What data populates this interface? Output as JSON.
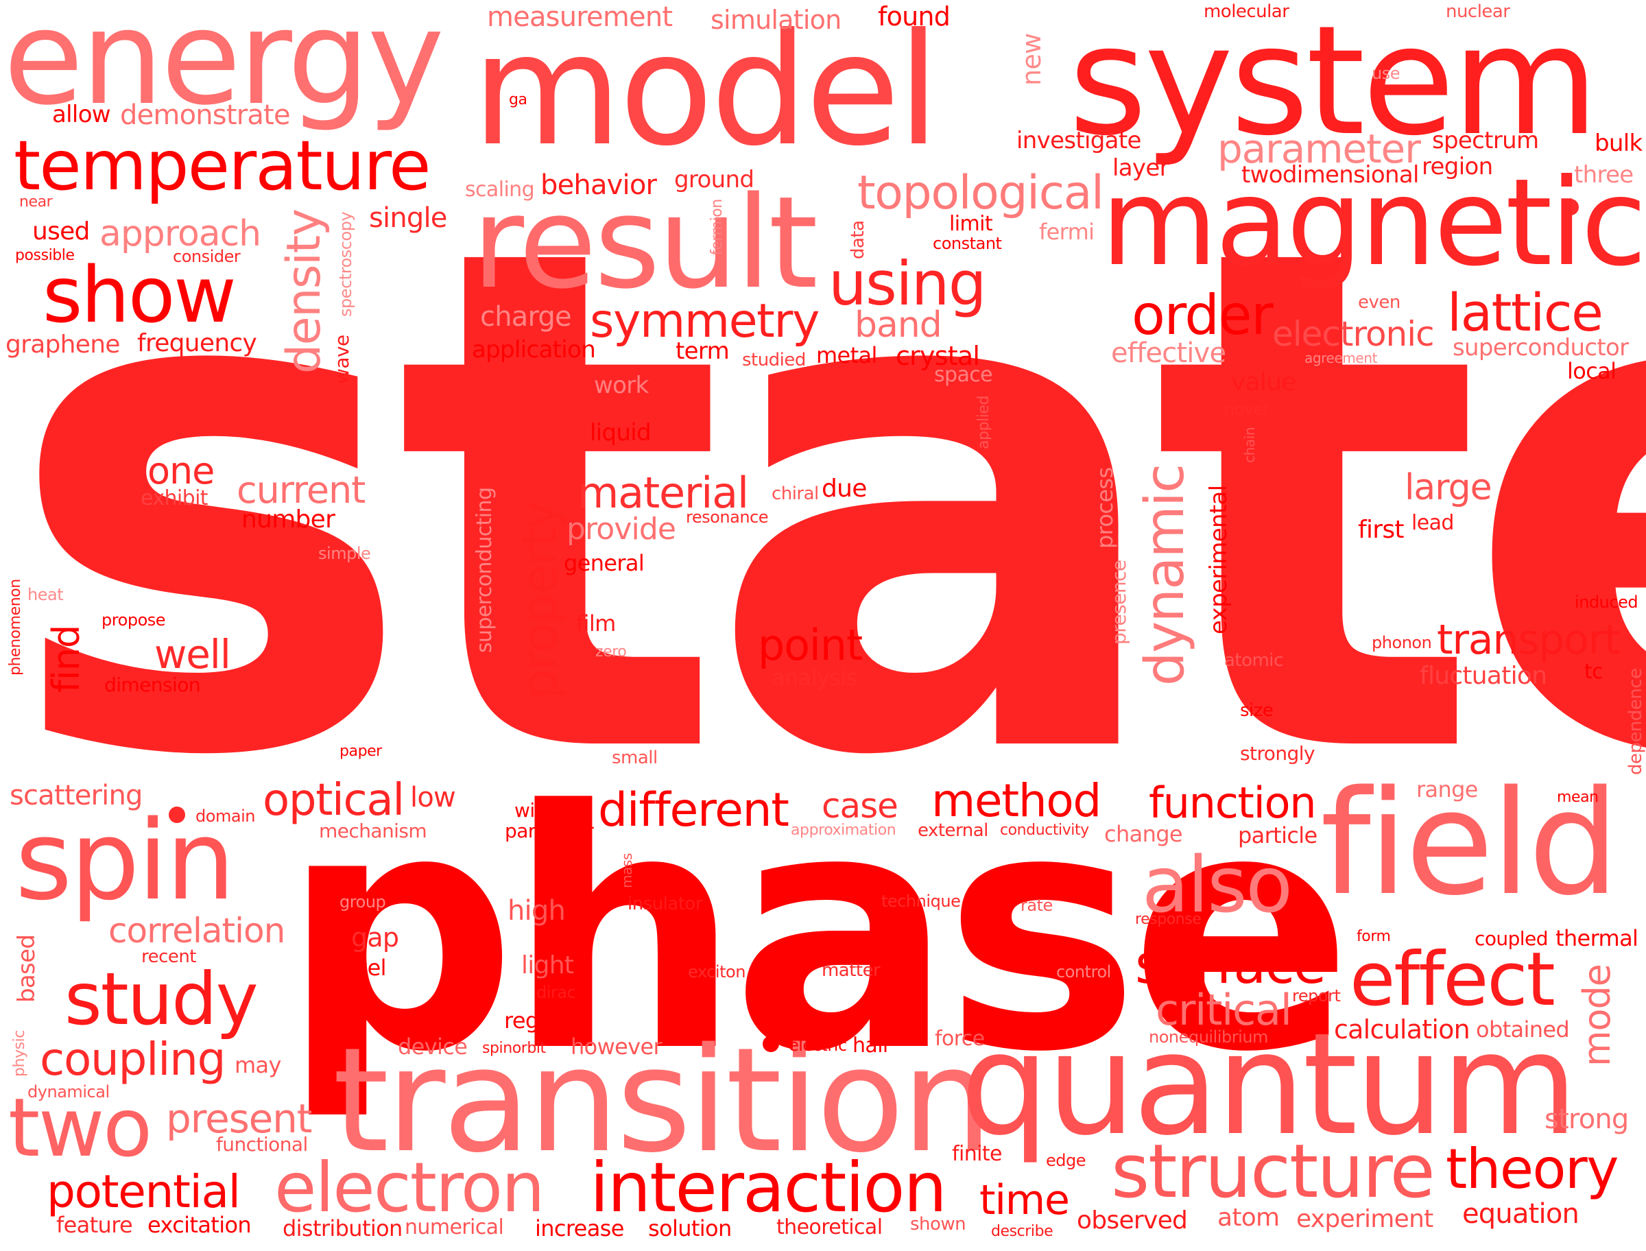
{
  "title": "",
  "palette": [
    "#ff0000",
    "#ff2b2b",
    "#ff5252",
    "#ff6e6e",
    "#ff8f8f",
    "#ffb2b2"
  ],
  "words": [
    "state",
    "phase",
    "transition",
    "quantum",
    "model",
    "system",
    "magnetic",
    "result",
    "energy",
    "field",
    "temperature",
    "show",
    "spin",
    "study",
    "two",
    "electron",
    "interaction",
    "structure",
    "theory",
    "effect",
    "surface",
    "also",
    "using",
    "order",
    "lattice",
    "topological",
    "symmetry",
    "density",
    "material",
    "property",
    "dynamic",
    "point",
    "different",
    "method",
    "function",
    "optical",
    "correlation",
    "coupling",
    "potential",
    "present",
    "critical",
    "current",
    "one",
    "well",
    "find",
    "parameter",
    "electronic",
    "measurement",
    "simulation",
    "found",
    "molecular",
    "nuclear",
    "new",
    "use",
    "bulk",
    "three",
    "spectrum",
    "region",
    "layer",
    "twodimensional",
    "investigate",
    "ga",
    "allow",
    "demonstrate",
    "approach",
    "used",
    "near",
    "possible",
    "consider",
    "single",
    "spectroscopy",
    "scaling",
    "behavior",
    "ground",
    "limit",
    "constant",
    "fermion",
    "data",
    "fermi",
    "graphene",
    "frequency",
    "band",
    "charge",
    "application",
    "term",
    "studied",
    "metal",
    "crystal",
    "space",
    "effective",
    "agreement",
    "superconductor",
    "local",
    "even",
    "value",
    "novel",
    "chain",
    "applied",
    "wave",
    "work",
    "liquid",
    "exhibit",
    "number",
    "simple",
    "heat",
    "phenomenon",
    "propose",
    "dimension",
    "superconducting",
    "provide",
    "general",
    "resonance",
    "chiral",
    "due",
    "film",
    "zero",
    "analysis",
    "process",
    "presence",
    "experimental",
    "large",
    "first",
    "lead",
    "induced",
    "transport",
    "phonon",
    "atomic",
    "fluctuation",
    "tc",
    "dependence",
    "size",
    "strongly",
    "paper",
    "small",
    "scattering",
    "domain",
    "mechanism",
    "low",
    "within",
    "particular",
    "approximation",
    "external",
    "conductivity",
    "case",
    "change",
    "particle",
    "range",
    "mean",
    "mass",
    "insulator",
    "technique",
    "rate",
    "group",
    "high",
    "response",
    "form",
    "coupled",
    "thermal",
    "recent",
    "based",
    "gap",
    "level",
    "light",
    "exciton",
    "matter",
    "control",
    "report",
    "obtained",
    "dirac",
    "regime",
    "calculation",
    "mode",
    "physic",
    "dynamical",
    "device",
    "spinorbit",
    "however",
    "electric",
    "hall",
    "force",
    "nonequilibrium",
    "may",
    "functional",
    "finite",
    "edge",
    "strong",
    "feature",
    "excitation",
    "distribution",
    "numerical",
    "increase",
    "solution",
    "theoretical",
    "shown",
    "time",
    "describe",
    "observed",
    "atom",
    "experiment",
    "equation"
  ]
}
